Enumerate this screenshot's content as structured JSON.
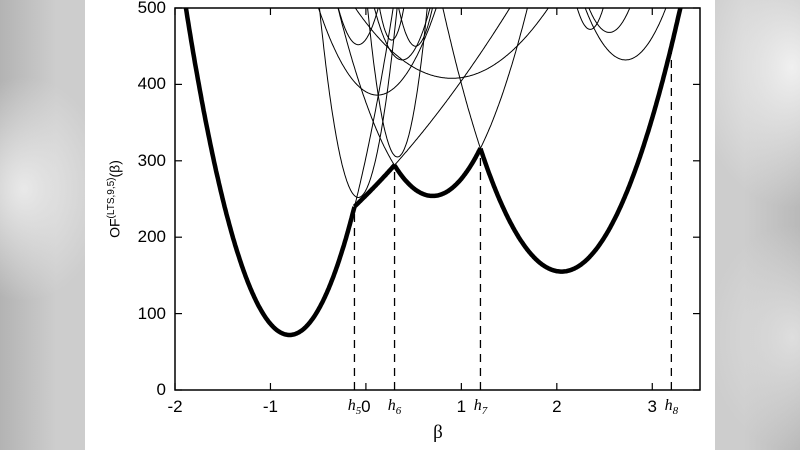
{
  "figure": {
    "ylabel_base": "OF",
    "ylabel_sup": "(LTS,9,5)",
    "ylabel_arg": "(β)",
    "xlabel": "β"
  },
  "chart_data": {
    "type": "line",
    "title": "",
    "xlabel": "β",
    "ylabel": "OF^(LTS,9,5)(β)",
    "xlim": [
      -2,
      3.5
    ],
    "ylim": [
      0,
      500
    ],
    "grid": false,
    "legend": "none",
    "x_ticks": [
      {
        "value": -2,
        "label": "-2"
      },
      {
        "value": -1,
        "label": "-1"
      },
      {
        "value": 0,
        "label": "0"
      },
      {
        "value": 1,
        "label": "1"
      },
      {
        "value": 2,
        "label": "2"
      },
      {
        "value": 3,
        "label": "3"
      }
    ],
    "y_ticks": [
      {
        "value": 0,
        "label": "0"
      },
      {
        "value": 100,
        "label": "100"
      },
      {
        "value": 200,
        "label": "200"
      },
      {
        "value": 300,
        "label": "300"
      },
      {
        "value": 400,
        "label": "400"
      },
      {
        "value": 500,
        "label": "500"
      }
    ],
    "h_marks": [
      {
        "base": "h",
        "sub": "5",
        "x": -0.12,
        "top": 240
      },
      {
        "base": "h",
        "sub": "6",
        "x": 0.3,
        "top": 294
      },
      {
        "base": "h",
        "sub": "7",
        "x": 1.2,
        "top": 316
      },
      {
        "base": "h",
        "sub": "8",
        "x": 3.2,
        "top": 450
      }
    ],
    "envelope_min": {
      "x": -0.8,
      "y": 72
    },
    "local_minima": [
      {
        "x": -0.8,
        "y": 72
      },
      {
        "x": 0.7,
        "y": 254
      },
      {
        "x": 2.05,
        "y": 155
      }
    ],
    "envelope_segments": [
      {
        "a": 363,
        "x0": -0.8,
        "y0": 72,
        "domain": [
          -2,
          -0.12
        ]
      },
      {
        "a": 25,
        "x0": -2.5,
        "y0": 98.4,
        "domain": [
          -0.12,
          0.3
        ]
      },
      {
        "a": 250,
        "x0": 0.7,
        "y0": 254,
        "domain": [
          0.3,
          1.2
        ]
      },
      {
        "a": 223,
        "x0": 2.05,
        "y0": 155,
        "domain": [
          1.2,
          3.5
        ]
      }
    ],
    "thin_parabolas": [
      {
        "a": 363,
        "x0": -0.8,
        "y0": 72,
        "domain": [
          -0.12,
          0.45
        ]
      },
      {
        "a": 25,
        "x0": -2.5,
        "y0": 98.4,
        "domain": [
          -0.12,
          1.65
        ]
      },
      {
        "a": 250,
        "x0": 0.7,
        "y0": 254,
        "domain": [
          -0.45,
          1.8
        ]
      },
      {
        "a": 223,
        "x0": 2.05,
        "y0": 155,
        "domain": [
          0.7,
          1.2
        ]
      },
      {
        "a": 300,
        "x0": 0.12,
        "y0": 386
      },
      {
        "a": 800,
        "x0": 0.38,
        "y0": 432
      },
      {
        "a": 1600,
        "x0": 0.52,
        "y0": 450
      },
      {
        "a": 1100,
        "x0": -0.08,
        "y0": 452
      },
      {
        "a": 2600,
        "x0": 0.27,
        "y0": 458
      },
      {
        "a": 90,
        "x0": 0.9,
        "y0": 408
      },
      {
        "a": 700,
        "x0": 2.55,
        "y0": 468
      },
      {
        "a": 380,
        "x0": 2.72,
        "y0": 432
      },
      {
        "a": 1500,
        "x0": 2.35,
        "y0": 472
      },
      {
        "a": 2000,
        "x0": 0.33,
        "y0": 305
      },
      {
        "a": 1500,
        "x0": -0.08,
        "y0": 252
      }
    ],
    "colors": {
      "curve": "#000000",
      "background": "#ffffff"
    }
  }
}
